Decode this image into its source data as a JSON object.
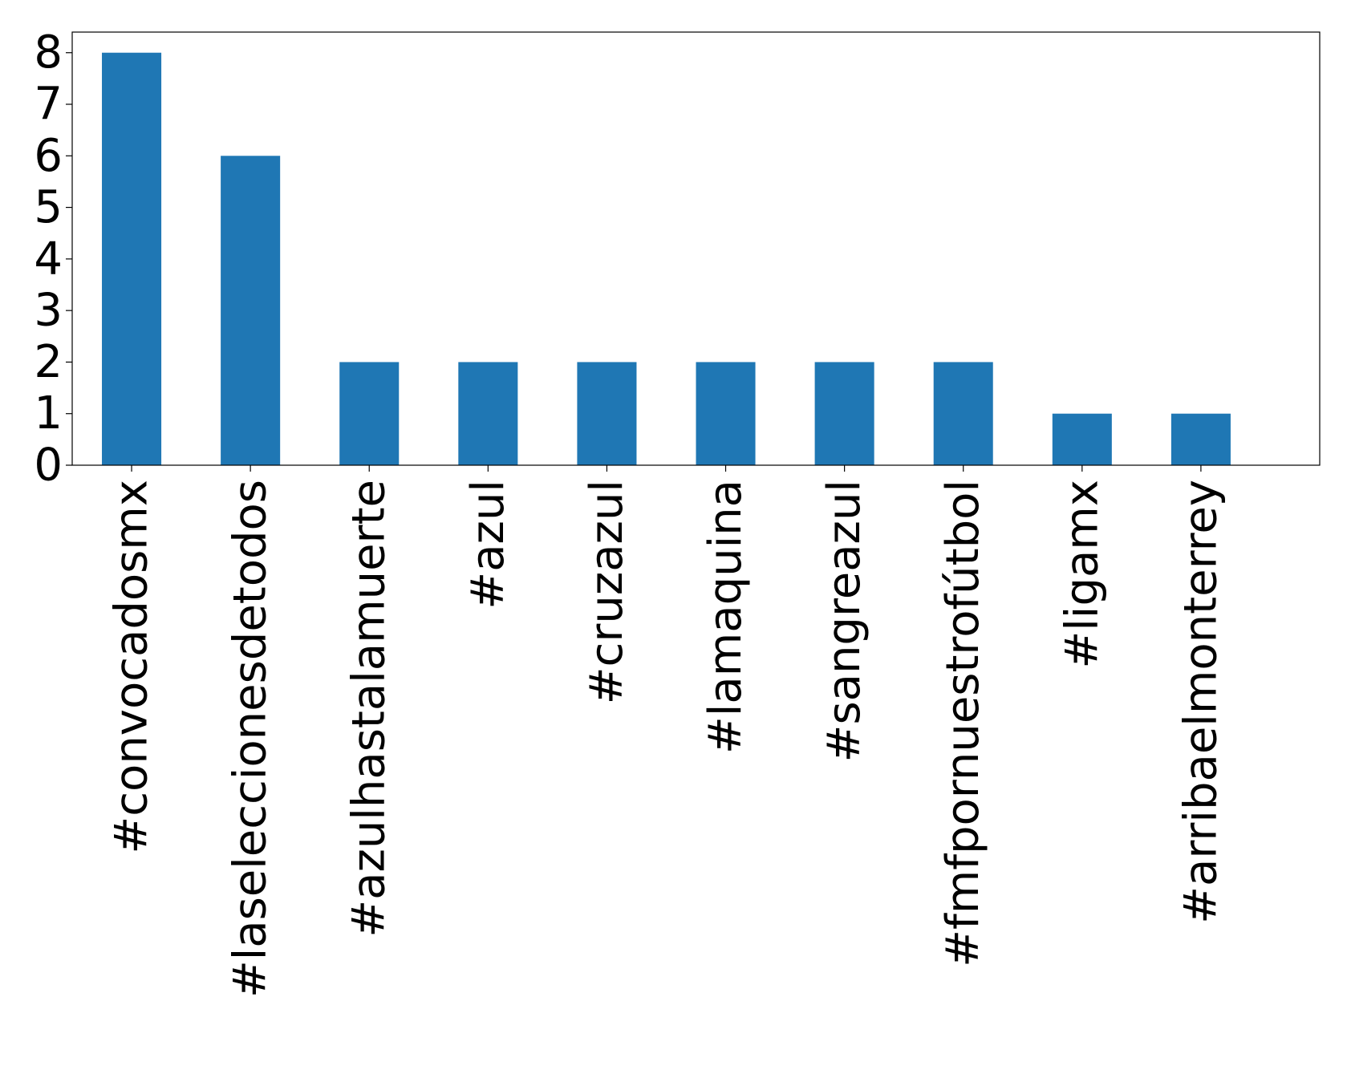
{
  "chart_data": {
    "type": "bar",
    "categories": [
      "#convocadosmx",
      "#laseleccionesdetodos",
      "#azulhastalamuerte",
      "#azul",
      "#cruzazul",
      "#lamaquina",
      "#sangreazul",
      "#fmfpornuestrofútbol",
      "#ligamx",
      "#arribaelmonterrey"
    ],
    "values": [
      8,
      6,
      2,
      2,
      2,
      2,
      2,
      2,
      1,
      1
    ],
    "ylim": [
      0,
      8.4
    ],
    "yticks": [
      0,
      1,
      2,
      3,
      4,
      5,
      6,
      7,
      8
    ],
    "grid": false,
    "legend": "none",
    "bar_color": "#1f77b4",
    "title": "",
    "xlabel": "",
    "ylabel": ""
  }
}
